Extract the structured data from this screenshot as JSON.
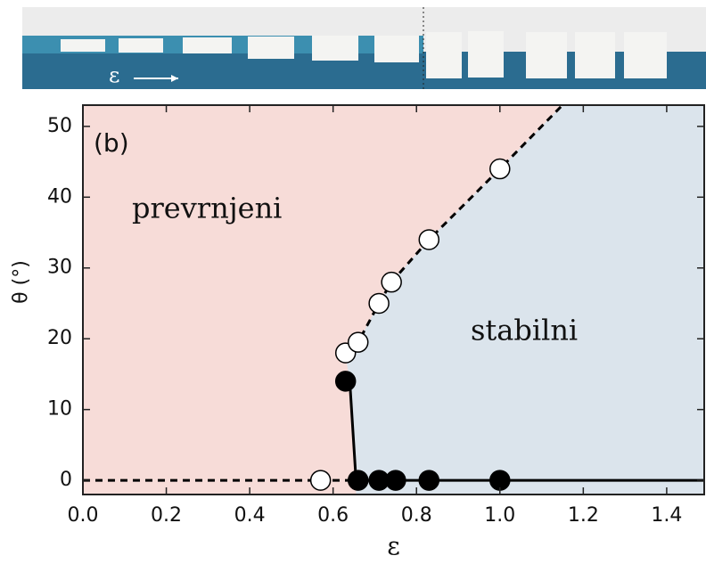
{
  "chart_data": {
    "type": "scatter",
    "photo_label": "ε",
    "annotations": [
      "(b)",
      "prevrnjeni",
      "stabilni"
    ],
    "xlabel": "ε",
    "ylabel": "θ (°)",
    "xlim": [
      0,
      1.49
    ],
    "ylim": [
      -2,
      53
    ],
    "xticks": [
      {
        "value": 0,
        "label": "0.0"
      },
      0.2,
      0.4,
      0.6,
      0.8,
      {
        "value": 1,
        "label": "1.0"
      },
      1.2,
      1.4
    ],
    "yticks": [
      0,
      10,
      20,
      30,
      40,
      50
    ],
    "region_colors": [
      "#f7dcd8",
      "#dbe4ec"
    ],
    "lines": [
      {
        "style": "dashed",
        "x": [
          0,
          0.65
        ],
        "y": [
          0,
          0
        ]
      },
      {
        "style": "dashed",
        "x": [
          0.63,
          0.66,
          0.71,
          0.74,
          0.83,
          1.0,
          1.15
        ],
        "y": [
          17.5,
          19.5,
          25,
          28,
          34,
          44,
          53
        ]
      },
      {
        "style": "solid",
        "x": [
          0.64,
          0.655,
          1.49
        ],
        "y": [
          14,
          0,
          0
        ]
      }
    ],
    "series": [
      {
        "marker": "open",
        "color": "#000000",
        "x": [
          0.57,
          0.63,
          0.66,
          0.71,
          0.74,
          0.83,
          1.0
        ],
        "values": [
          0,
          18,
          19.5,
          25,
          28,
          34,
          44
        ]
      },
      {
        "marker": "filled",
        "color": "#000000",
        "x": [
          0.63,
          0.66,
          0.71,
          0.75,
          0.83,
          1.0
        ],
        "values": [
          14,
          0,
          0,
          0,
          0,
          0
        ]
      }
    ]
  }
}
